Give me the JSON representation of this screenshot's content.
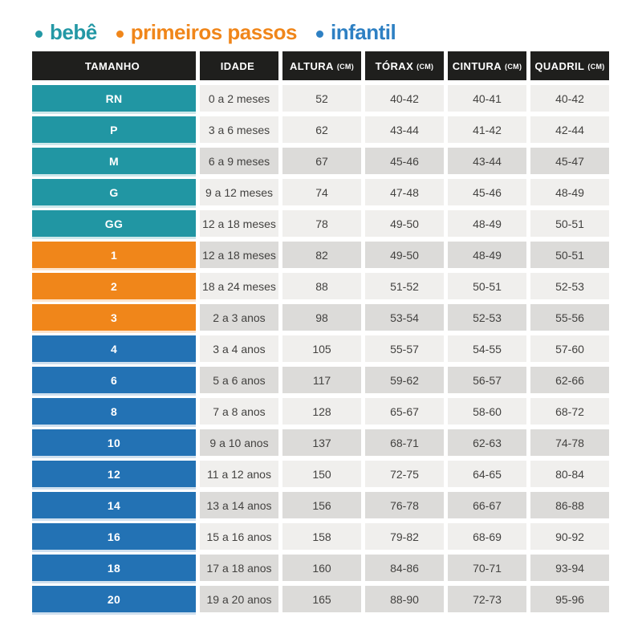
{
  "legend": {
    "items": [
      {
        "key": "bebe",
        "label": "bebê",
        "color": "#2398a5"
      },
      {
        "key": "primeiros-passos",
        "label": "primeiros passos",
        "color": "#f0861a"
      },
      {
        "key": "infantil",
        "label": "infantil",
        "color": "#2e80c3"
      }
    ]
  },
  "chart_data": {
    "type": "table",
    "columns": [
      {
        "key": "tamanho",
        "label": "TAMANHO",
        "unit": ""
      },
      {
        "key": "idade",
        "label": "IDADE",
        "unit": ""
      },
      {
        "key": "altura",
        "label": "ALTURA",
        "unit": "(CM)"
      },
      {
        "key": "torax",
        "label": "TÓRAX",
        "unit": "(CM)"
      },
      {
        "key": "cintura",
        "label": "CINTURA",
        "unit": "(CM)"
      },
      {
        "key": "quadril",
        "label": "QUADRIL",
        "unit": "(CM)"
      }
    ],
    "rows": [
      {
        "size": "RN",
        "group": "bebe",
        "age": "0 a 2 meses",
        "height": "52",
        "chest": "40-42",
        "waist": "40-41",
        "hip": "40-42",
        "shade": "light"
      },
      {
        "size": "P",
        "group": "bebe",
        "age": "3 a 6 meses",
        "height": "62",
        "chest": "43-44",
        "waist": "41-42",
        "hip": "42-44",
        "shade": "light"
      },
      {
        "size": "M",
        "group": "bebe",
        "age": "6 a 9 meses",
        "height": "67",
        "chest": "45-46",
        "waist": "43-44",
        "hip": "45-47",
        "shade": "dark"
      },
      {
        "size": "G",
        "group": "bebe",
        "age": "9 a 12 meses",
        "height": "74",
        "chest": "47-48",
        "waist": "45-46",
        "hip": "48-49",
        "shade": "light"
      },
      {
        "size": "GG",
        "group": "bebe",
        "age": "12 a 18 meses",
        "height": "78",
        "chest": "49-50",
        "waist": "48-49",
        "hip": "50-51",
        "shade": "light"
      },
      {
        "size": "1",
        "group": "primeiros-passos",
        "age": "12 a 18 meses",
        "height": "82",
        "chest": "49-50",
        "waist": "48-49",
        "hip": "50-51",
        "shade": "dark"
      },
      {
        "size": "2",
        "group": "primeiros-passos",
        "age": "18 a 24 meses",
        "height": "88",
        "chest": "51-52",
        "waist": "50-51",
        "hip": "52-53",
        "shade": "light"
      },
      {
        "size": "3",
        "group": "primeiros-passos",
        "age": "2 a 3 anos",
        "height": "98",
        "chest": "53-54",
        "waist": "52-53",
        "hip": "55-56",
        "shade": "dark"
      },
      {
        "size": "4",
        "group": "infantil",
        "age": "3 a 4 anos",
        "height": "105",
        "chest": "55-57",
        "waist": "54-55",
        "hip": "57-60",
        "shade": "light"
      },
      {
        "size": "6",
        "group": "infantil",
        "age": "5 a 6 anos",
        "height": "117",
        "chest": "59-62",
        "waist": "56-57",
        "hip": "62-66",
        "shade": "dark"
      },
      {
        "size": "8",
        "group": "infantil",
        "age": "7 a 8 anos",
        "height": "128",
        "chest": "65-67",
        "waist": "58-60",
        "hip": "68-72",
        "shade": "light"
      },
      {
        "size": "10",
        "group": "infantil",
        "age": "9 a 10 anos",
        "height": "137",
        "chest": "68-71",
        "waist": "62-63",
        "hip": "74-78",
        "shade": "dark"
      },
      {
        "size": "12",
        "group": "infantil",
        "age": "11 a 12 anos",
        "height": "150",
        "chest": "72-75",
        "waist": "64-65",
        "hip": "80-84",
        "shade": "light"
      },
      {
        "size": "14",
        "group": "infantil",
        "age": "13 a 14 anos",
        "height": "156",
        "chest": "76-78",
        "waist": "66-67",
        "hip": "86-88",
        "shade": "dark"
      },
      {
        "size": "16",
        "group": "infantil",
        "age": "15 a 16 anos",
        "height": "158",
        "chest": "79-82",
        "waist": "68-69",
        "hip": "90-92",
        "shade": "light"
      },
      {
        "size": "18",
        "group": "infantil",
        "age": "17 a 18 anos",
        "height": "160",
        "chest": "84-86",
        "waist": "70-71",
        "hip": "93-94",
        "shade": "dark"
      },
      {
        "size": "20",
        "group": "infantil",
        "age": "19 a 20 anos",
        "height": "165",
        "chest": "88-90",
        "waist": "72-73",
        "hip": "95-96",
        "shade": "dark"
      }
    ]
  },
  "colors": {
    "header_background": "#1f1f1d",
    "row_light": "#f0efed",
    "row_dark": "#dcdbd9",
    "teal": "#2196a3",
    "orange": "#f0861a",
    "blue": "#2372b4",
    "text": "#434240"
  }
}
